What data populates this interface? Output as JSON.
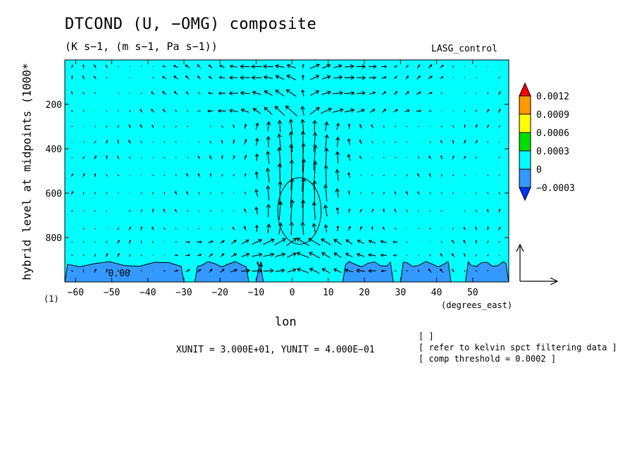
{
  "chart_data": {
    "type": "heatmap",
    "title": "DTCOND (U, −OMG) composite",
    "subtitle": "(K s−1, (m s−1, Pa s−1))",
    "case_label": "LASG_control",
    "xlabel": "lon",
    "x_units": "(degrees_east)",
    "ylabel": "hybrid level at midpoints (1000*",
    "ylabel_note": "(1)",
    "xlim": [
      -63,
      60
    ],
    "ylim": [
      1000,
      0
    ],
    "x_ticks": [
      -60,
      -50,
      -40,
      -30,
      -20,
      -10,
      0,
      10,
      20,
      30,
      40,
      50
    ],
    "x_tick_labels": [
      "−60",
      "−50",
      "−40",
      "−30",
      "−20",
      "−10",
      "0",
      "10",
      "20",
      "30",
      "40",
      "50"
    ],
    "y_ticks": [
      200,
      400,
      600,
      800
    ],
    "y_tick_labels": [
      "200",
      "400",
      "600",
      "800"
    ],
    "colorbar": {
      "levels": [
        "0.0012",
        "0.0009",
        "0.0006",
        "0.0003",
        "0",
        "−0.0003"
      ],
      "colors": [
        "#ff0000",
        "#ff9900",
        "#ffff00",
        "#00dd00",
        "#00ffff",
        "#3399ff",
        "#0033ff"
      ]
    },
    "background_fill": "#00ffff",
    "negative_fill": "#3399ff",
    "contour_label": "0.00",
    "negative_regions_lon": [
      [
        -63,
        -30
      ],
      [
        -27,
        -12
      ],
      [
        -10,
        -8
      ],
      [
        14,
        28
      ],
      [
        30,
        44
      ],
      [
        48,
        60
      ]
    ],
    "positive_contour_center": [
      2,
      680
    ],
    "positive_contour_half_widths": [
      6,
      150
    ],
    "vectors": {
      "x_count": 38,
      "x_start": -61,
      "x_step": 3.2,
      "y_levels": [
        30,
        80,
        150,
        230,
        300,
        370,
        440,
        520,
        600,
        680,
        760,
        820,
        880,
        950
      ],
      "reference_u": 30.0,
      "reference_w": 0.4
    },
    "unit_text": "XUNIT = 3.000E+01, YUNIT = 4.000E−01",
    "notes": [
      "[  ]",
      "[ refer to kelvin spct filtering data ]",
      "[ comp threshold = 0.0002 ]"
    ]
  }
}
